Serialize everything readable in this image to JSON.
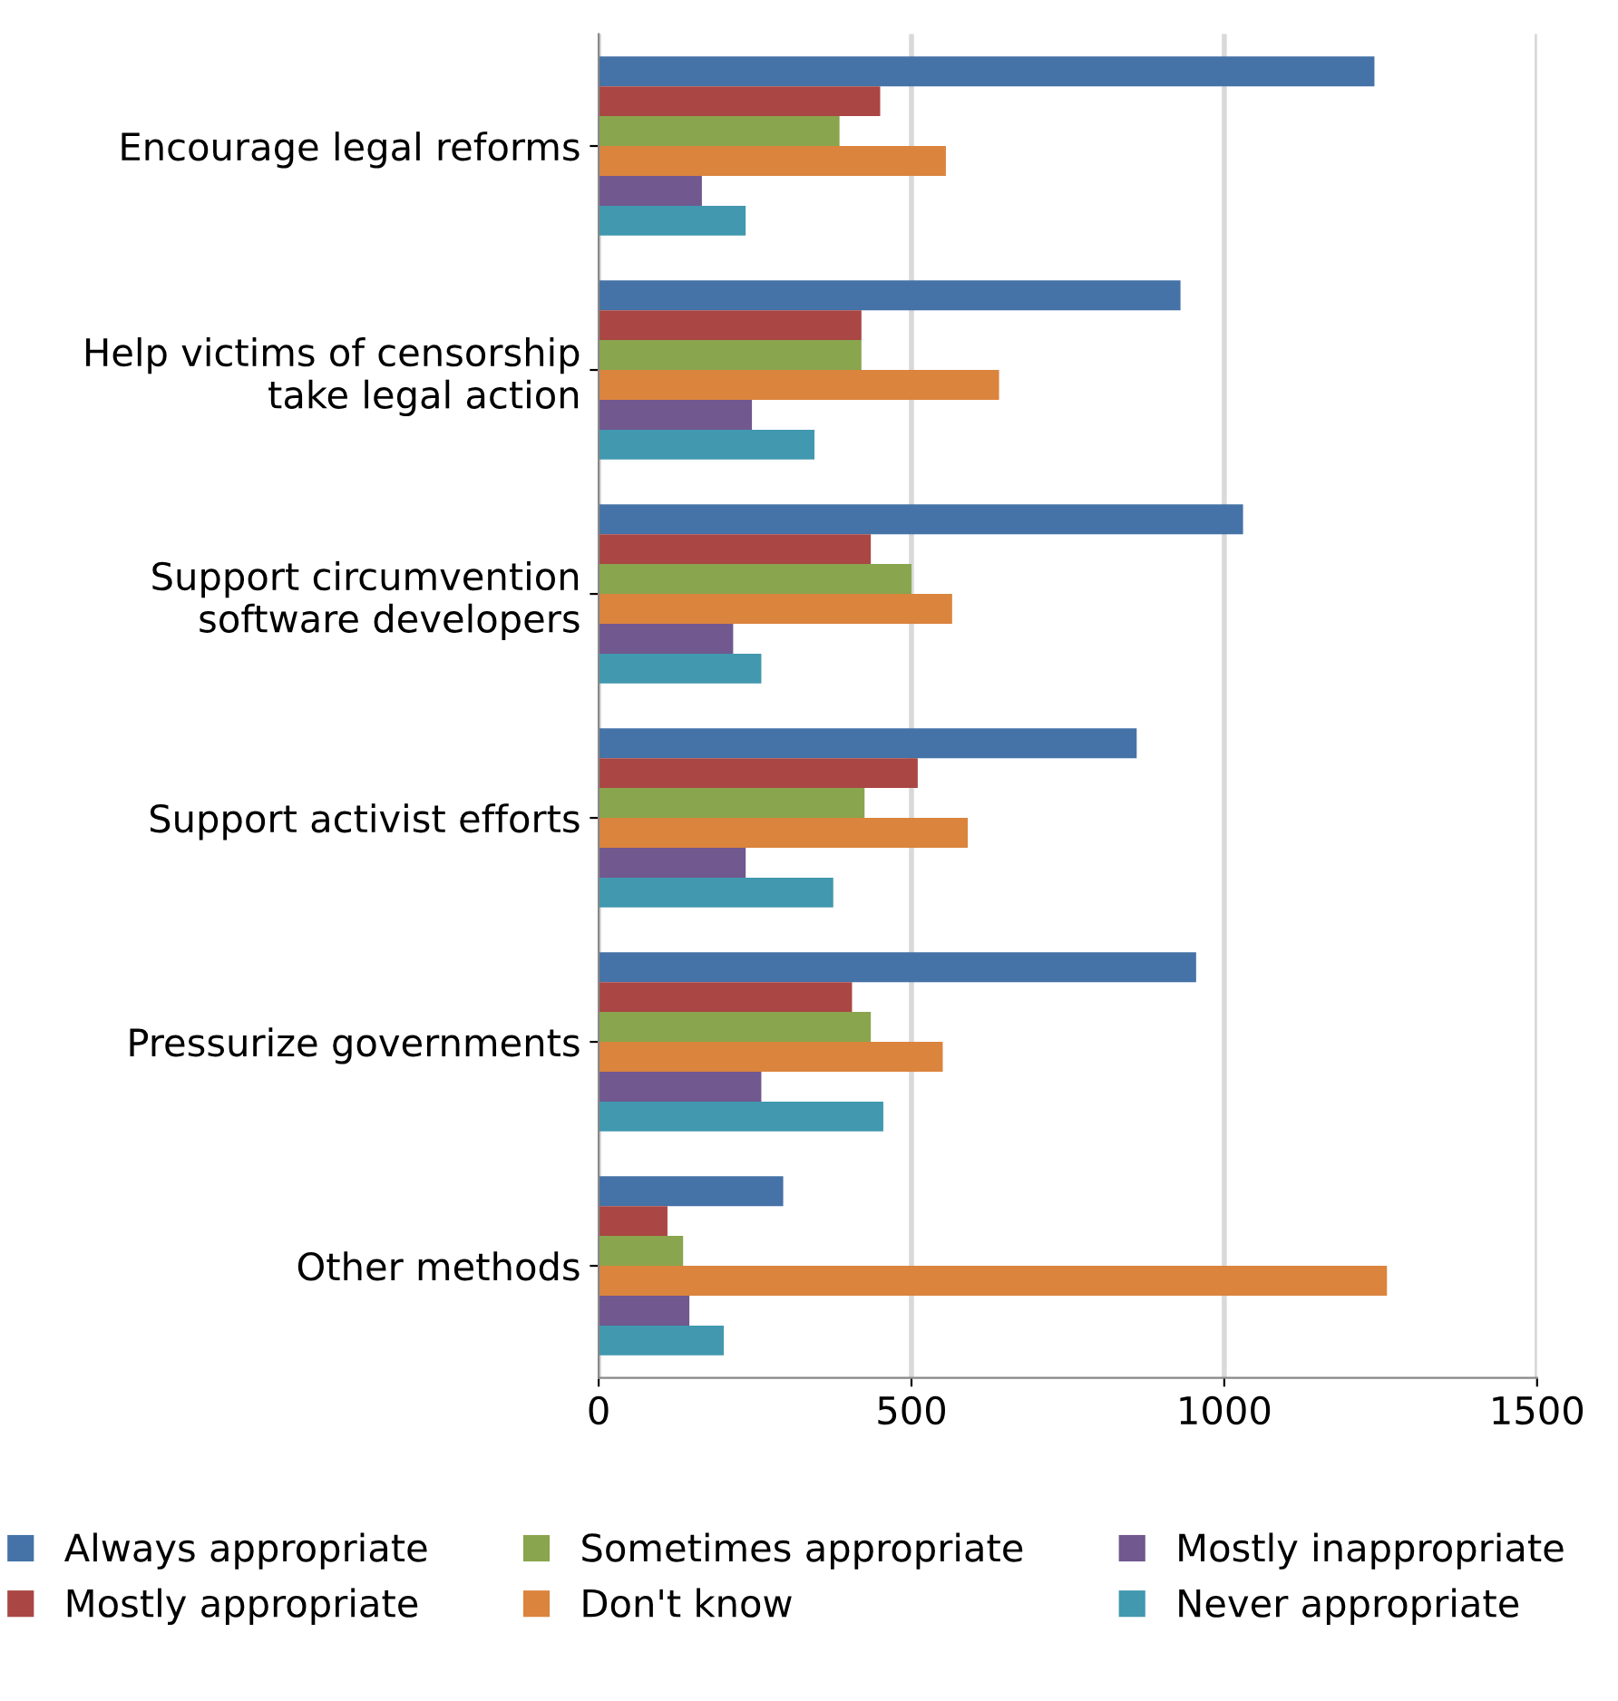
{
  "chart_data": {
    "type": "bar",
    "orientation": "horizontal",
    "categories": [
      "Encourage legal reforms",
      "Help victims of censorship\ntake legal action",
      "Support circumvention\nsoftware developers",
      "Support activist efforts",
      "Pressurize governments",
      "Other methods"
    ],
    "series": [
      {
        "name": "Always appropriate",
        "color": "#4572a7",
        "values": [
          1240,
          930,
          1030,
          860,
          955,
          295
        ]
      },
      {
        "name": "Mostly appropriate",
        "color": "#aa4643",
        "values": [
          450,
          420,
          435,
          510,
          405,
          110
        ]
      },
      {
        "name": "Sometimes appropriate",
        "color": "#89a54e",
        "values": [
          385,
          420,
          500,
          425,
          435,
          135
        ]
      },
      {
        "name": "Don't know",
        "color": "#db843d",
        "values": [
          555,
          640,
          565,
          590,
          550,
          1260
        ]
      },
      {
        "name": "Mostly inappropriate",
        "color": "#71588f",
        "values": [
          165,
          245,
          215,
          235,
          260,
          145
        ]
      },
      {
        "name": "Never appropriate",
        "color": "#4198af",
        "values": [
          235,
          345,
          260,
          375,
          455,
          200
        ]
      }
    ],
    "xlim": [
      0,
      1500
    ],
    "xticks": [
      0,
      500,
      1000,
      1500
    ],
    "grid": "x",
    "legend": "bottom"
  }
}
